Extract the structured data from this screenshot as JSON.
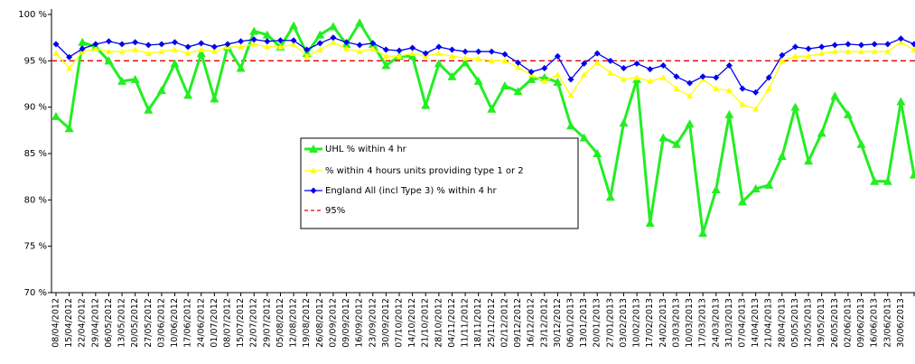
{
  "chart_data": {
    "type": "line",
    "categories": [
      "08/04/2012",
      "15/04/2012",
      "22/04/2012",
      "29/04/2012",
      "06/05/2012",
      "13/05/2012",
      "20/05/2012",
      "27/05/2012",
      "03/06/2012",
      "10/06/2012",
      "17/06/2012",
      "24/06/2012",
      "01/07/2012",
      "08/07/2012",
      "15/07/2012",
      "22/07/2012",
      "29/07/2012",
      "05/08/2012",
      "12/08/2012",
      "19/08/2012",
      "26/08/2012",
      "02/09/2012",
      "09/09/2012",
      "16/09/2012",
      "23/09/2012",
      "30/09/2012",
      "07/10/2012",
      "14/10/2012",
      "21/10/2012",
      "28/10/2012",
      "04/11/2012",
      "11/11/2012",
      "18/11/2012",
      "25/11/2012",
      "02/12/2012",
      "09/12/2012",
      "16/12/2012",
      "23/12/2012",
      "30/12/2012",
      "06/01/2013",
      "13/01/2013",
      "20/01/2013",
      "27/01/2013",
      "03/02/2013",
      "10/02/2013",
      "17/02/2013",
      "24/02/2013",
      "03/03/2013",
      "10/03/2013",
      "17/03/2013",
      "24/03/2013",
      "31/03/2013",
      "07/04/2013",
      "14/04/2013",
      "21/04/2013",
      "28/04/2013",
      "05/05/2013",
      "12/05/2013",
      "19/05/2013",
      "26/05/2013",
      "02/06/2013",
      "09/06/2013",
      "16/06/2013",
      "23/06/2013",
      "30/06/2013",
      null
    ],
    "series": [
      {
        "name": "UHL % within 4 hr",
        "color": "#22ee22",
        "marker": "triangle",
        "values": [
          89,
          87.7,
          97,
          96.5,
          95,
          92.8,
          93,
          89.7,
          91.8,
          94.7,
          91.3,
          95.8,
          90.9,
          96.5,
          94.2,
          98.2,
          97.8,
          96.5,
          98.8,
          95.8,
          97.8,
          98.7,
          96.8,
          99.1,
          96.8,
          94.5,
          95.5,
          95.5,
          90.2,
          94.7,
          93.3,
          94.8,
          92.8,
          89.8,
          92.3,
          91.7,
          93,
          93.2,
          92.7,
          88,
          86.7,
          85,
          80.3,
          88.3,
          93,
          77.5,
          86.7,
          86,
          88.2,
          76.4,
          81.1,
          89.2,
          79.8,
          81.2,
          81.6,
          84.7,
          90,
          84.2,
          87.2,
          91.2,
          89.2,
          86,
          82,
          82,
          90.6,
          82.7
        ]
      },
      {
        "name": "% within 4 hours units providing type 1 or 2",
        "color": "#ffff00",
        "marker": "triangle",
        "values": [
          95.8,
          94.2,
          96,
          96.3,
          96,
          96,
          96.2,
          95.8,
          96,
          96.2,
          95.8,
          96.2,
          96,
          96.5,
          96.5,
          96.8,
          96.5,
          96.5,
          96.8,
          95.5,
          96.2,
          97,
          96.3,
          96,
          96.3,
          95.5,
          95.5,
          95.8,
          95.5,
          95.8,
          95.5,
          95.3,
          95.2,
          95,
          95,
          94.3,
          93.5,
          92.8,
          93.5,
          91.3,
          93.5,
          94.8,
          93.7,
          93,
          93.2,
          92.8,
          93.2,
          92,
          91.2,
          93,
          92,
          91.8,
          90.3,
          89.8,
          92,
          95,
          95.5,
          95.5,
          95.8,
          96,
          96,
          96,
          96,
          96,
          97,
          96.2
        ]
      },
      {
        "name": "England All (incl Type 3) % within 4 hr",
        "color": "#0000ee",
        "marker": "diamond",
        "values": [
          96.8,
          95.4,
          96.3,
          96.8,
          97.1,
          96.8,
          97,
          96.7,
          96.8,
          97,
          96.5,
          96.9,
          96.5,
          96.8,
          97.1,
          97.3,
          97.1,
          97.2,
          97.2,
          96.2,
          96.9,
          97.5,
          97,
          96.7,
          96.9,
          96.2,
          96.1,
          96.4,
          95.8,
          96.5,
          96.2,
          96,
          96,
          96,
          95.7,
          94.8,
          93.8,
          94.2,
          95.5,
          93,
          94.7,
          95.8,
          95,
          94.2,
          94.7,
          94.1,
          94.5,
          93.3,
          92.6,
          93.3,
          93.2,
          94.5,
          92,
          91.6,
          93.2,
          95.6,
          96.5,
          96.3,
          96.5,
          96.7,
          96.8,
          96.7,
          96.8,
          96.8,
          97.4,
          96.8
        ]
      }
    ],
    "reference_line": {
      "name": "95%",
      "value": 95,
      "color": "#e00000"
    },
    "ylim": [
      70,
      100
    ],
    "yticks": [
      {
        "value": 70,
        "label": "70 %"
      },
      {
        "value": 75,
        "label": "75 %"
      },
      {
        "value": 80,
        "label": "80 %"
      },
      {
        "value": 85,
        "label": "85 %"
      },
      {
        "value": 90,
        "label": "90 %"
      },
      {
        "value": 95,
        "label": "95 %"
      },
      {
        "value": 100,
        "label": "100 %"
      }
    ],
    "grid": false
  }
}
